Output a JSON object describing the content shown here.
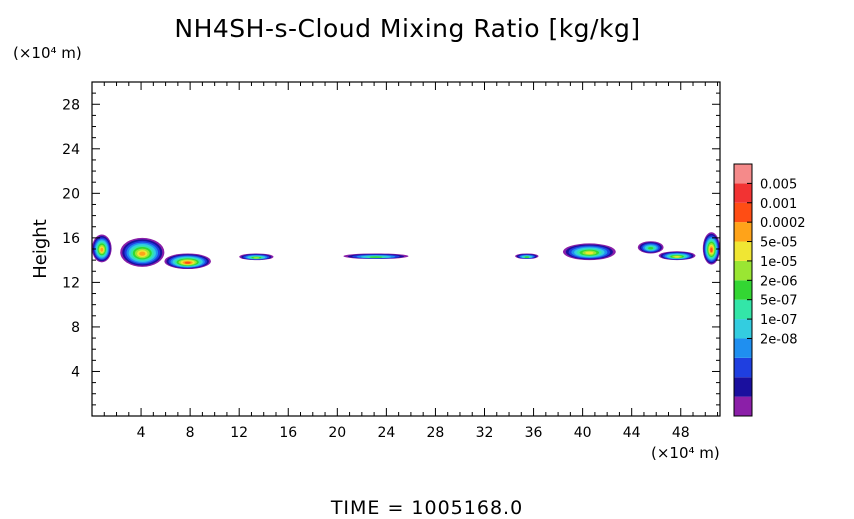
{
  "title": "NH4SH-s-Cloud Mixing Ratio [kg/kg]",
  "y_unit": "(×10⁴ m)",
  "x_unit": "(×10⁴ m)",
  "footer": "TIME  =  1005168.0",
  "chart_data": {
    "type": "heatmap",
    "title": "NH4SH-s-Cloud Mixing Ratio [kg/kg]",
    "xlabel": "",
    "ylabel": "Height",
    "xlim": [
      0,
      51.2
    ],
    "ylim": [
      0,
      30
    ],
    "x_ticks": [
      "4",
      "8",
      "12",
      "16",
      "20",
      "24",
      "28",
      "32",
      "36",
      "40",
      "44",
      "48"
    ],
    "y_ticks": [
      "4",
      "8",
      "12",
      "16",
      "20",
      "24",
      "28"
    ],
    "colorbar": {
      "labels": [
        "0.005",
        "0.001",
        "0.0002",
        "5e-05",
        "1e-05",
        "2e-06",
        "5e-07",
        "1e-07",
        "2e-08"
      ],
      "colors": [
        "#8b1fa8",
        "#1a0f9e",
        "#1f3fe0",
        "#1f8ff0",
        "#33cde0",
        "#33e6a8",
        "#33d633",
        "#9ae633",
        "#f0e633",
        "#ffa319",
        "#ff4d14",
        "#f23333",
        "#f58a8a"
      ]
    },
    "cloud_blobs": [
      {
        "x0": 0.0,
        "x1": 1.6,
        "y0": 13.8,
        "y1": 16.3,
        "peak": "5e-05"
      },
      {
        "x0": 2.3,
        "x1": 5.9,
        "y0": 13.4,
        "y1": 16.0,
        "peak": "5e-05"
      },
      {
        "x0": 5.9,
        "x1": 9.7,
        "y0": 13.2,
        "y1": 14.6,
        "peak": "0.0002"
      },
      {
        "x0": 12.0,
        "x1": 14.8,
        "y0": 14.0,
        "y1": 14.6,
        "peak": "2e-06"
      },
      {
        "x0": 20.5,
        "x1": 25.8,
        "y0": 14.1,
        "y1": 14.6,
        "peak": "5e-07"
      },
      {
        "x0": 34.5,
        "x1": 36.4,
        "y0": 14.1,
        "y1": 14.6,
        "peak": "5e-07"
      },
      {
        "x0": 38.4,
        "x1": 42.7,
        "y0": 14.0,
        "y1": 15.5,
        "peak": "1e-05"
      },
      {
        "x0": 44.5,
        "x1": 46.6,
        "y0": 14.6,
        "y1": 15.7,
        "peak": "5e-07"
      },
      {
        "x0": 46.2,
        "x1": 49.2,
        "y0": 14.0,
        "y1": 14.8,
        "peak": "1e-05"
      },
      {
        "x0": 49.8,
        "x1": 51.2,
        "y0": 13.6,
        "y1": 16.5,
        "peak": "0.0002"
      }
    ]
  }
}
